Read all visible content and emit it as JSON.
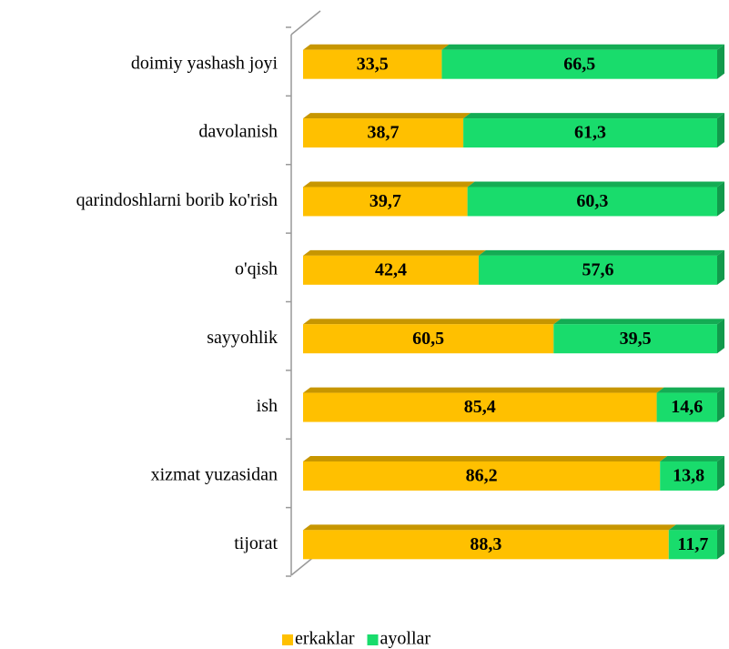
{
  "chart_data": {
    "type": "bar",
    "orientation": "horizontal",
    "stacked": "percent",
    "categories": [
      "doimiy yashash joyi",
      "davolanish",
      "qarindoshlarni borib ko'rish",
      "o'qish",
      "sayyohlik",
      "ish",
      "xizmat yuzasidan",
      "tijorat"
    ],
    "series": [
      {
        "name": "erkaklar",
        "color": "#FFC000",
        "values": [
          33.5,
          38.7,
          39.7,
          42.4,
          60.5,
          85.4,
          86.2,
          88.3
        ],
        "value_labels": [
          "33,5",
          "38,7",
          "39,7",
          "42,4",
          "60,5",
          "85,4",
          "86,2",
          "88,3"
        ]
      },
      {
        "name": "ayollar",
        "color": "#19DC6C",
        "values": [
          66.5,
          61.3,
          60.3,
          57.6,
          39.5,
          14.6,
          13.8,
          11.7
        ],
        "value_labels": [
          "66,5",
          "61,3",
          "60,3",
          "57,6",
          "39,5",
          "14,6",
          "13,8",
          "11,7"
        ]
      }
    ],
    "legend": "bottom"
  }
}
